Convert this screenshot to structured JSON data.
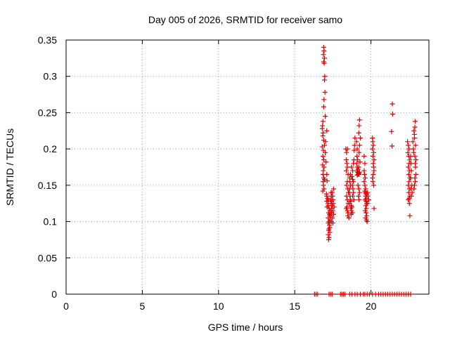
{
  "chart_data": {
    "type": "scatter",
    "title": "Day 005 of 2026, SRMTID for receiver samo",
    "xlabel": "GPS time / hours",
    "ylabel": "SRMTID / TECUs",
    "xlim": [
      0,
      23.8
    ],
    "ylim": [
      0,
      0.35
    ],
    "xticks": [
      0,
      5,
      10,
      15,
      20
    ],
    "xtick_labels": [
      "0",
      "5",
      "10",
      "15",
      "20"
    ],
    "yticks": [
      0,
      0.05,
      0.1,
      0.15,
      0.2,
      0.25,
      0.3,
      0.35
    ],
    "ytick_labels": [
      "0",
      "0.05",
      "0.1",
      "0.15",
      "0.2",
      "0.25",
      "0.3",
      "0.35"
    ],
    "grid": true,
    "marker": "+",
    "marker_color": "#e00000",
    "series": [
      {
        "name": "SRMTID",
        "points": [
          [
            16.9,
            0.34
          ],
          [
            16.92,
            0.335
          ],
          [
            16.88,
            0.33
          ],
          [
            16.95,
            0.325
          ],
          [
            16.9,
            0.32
          ],
          [
            16.93,
            0.318
          ],
          [
            16.97,
            0.3
          ],
          [
            16.95,
            0.295
          ],
          [
            16.98,
            0.278
          ],
          [
            16.92,
            0.268
          ],
          [
            16.9,
            0.258
          ],
          [
            17.0,
            0.245
          ],
          [
            16.85,
            0.238
          ],
          [
            16.82,
            0.232
          ],
          [
            16.8,
            0.228
          ],
          [
            16.86,
            0.222
          ],
          [
            17.1,
            0.225
          ],
          [
            16.84,
            0.218
          ],
          [
            16.9,
            0.212
          ],
          [
            17.02,
            0.21
          ],
          [
            16.95,
            0.205
          ],
          [
            16.8,
            0.203
          ],
          [
            16.88,
            0.198
          ],
          [
            17.0,
            0.195
          ],
          [
            16.85,
            0.19
          ],
          [
            16.9,
            0.185
          ],
          [
            17.05,
            0.182
          ],
          [
            16.83,
            0.178
          ],
          [
            16.92,
            0.175
          ],
          [
            16.87,
            0.17
          ],
          [
            17.1,
            0.165
          ],
          [
            16.85,
            0.165
          ],
          [
            16.9,
            0.16
          ],
          [
            16.95,
            0.158
          ],
          [
            17.12,
            0.156
          ],
          [
            16.86,
            0.155
          ],
          [
            16.88,
            0.15
          ],
          [
            16.92,
            0.145
          ],
          [
            16.84,
            0.142
          ],
          [
            17.08,
            0.138
          ],
          [
            17.1,
            0.135
          ],
          [
            17.15,
            0.132
          ],
          [
            17.2,
            0.13
          ],
          [
            17.1,
            0.128
          ],
          [
            17.18,
            0.125
          ],
          [
            17.2,
            0.122
          ],
          [
            17.12,
            0.12
          ],
          [
            17.25,
            0.118
          ],
          [
            17.3,
            0.115
          ],
          [
            17.22,
            0.112
          ],
          [
            17.28,
            0.11
          ],
          [
            17.3,
            0.108
          ],
          [
            17.2,
            0.105
          ],
          [
            17.32,
            0.102
          ],
          [
            17.25,
            0.1
          ],
          [
            17.2,
            0.098
          ],
          [
            17.27,
            0.095
          ],
          [
            17.3,
            0.092
          ],
          [
            17.25,
            0.09
          ],
          [
            17.22,
            0.088
          ],
          [
            17.3,
            0.085
          ],
          [
            17.2,
            0.082
          ],
          [
            17.25,
            0.078
          ],
          [
            17.22,
            0.075
          ],
          [
            17.38,
            0.14
          ],
          [
            17.4,
            0.135
          ],
          [
            17.35,
            0.13
          ],
          [
            17.42,
            0.128
          ],
          [
            17.38,
            0.125
          ],
          [
            17.45,
            0.122
          ],
          [
            17.4,
            0.118
          ],
          [
            17.38,
            0.115
          ],
          [
            17.42,
            0.112
          ],
          [
            17.35,
            0.108
          ],
          [
            17.45,
            0.105
          ],
          [
            17.4,
            0.1
          ],
          [
            17.5,
            0.098
          ],
          [
            17.45,
            0.14
          ],
          [
            17.48,
            0.135
          ],
          [
            17.5,
            0.13
          ],
          [
            17.55,
            0.145
          ],
          [
            17.52,
            0.125
          ],
          [
            17.58,
            0.12
          ],
          [
            17.5,
            0.115
          ],
          [
            17.55,
            0.11
          ],
          [
            18.35,
            0.2
          ],
          [
            18.4,
            0.195
          ],
          [
            18.45,
            0.2
          ],
          [
            18.38,
            0.185
          ],
          [
            18.42,
            0.18
          ],
          [
            18.45,
            0.175
          ],
          [
            18.38,
            0.17
          ],
          [
            18.5,
            0.165
          ],
          [
            18.45,
            0.155
          ],
          [
            18.4,
            0.15
          ],
          [
            18.48,
            0.145
          ],
          [
            18.52,
            0.14
          ],
          [
            18.4,
            0.135
          ],
          [
            18.45,
            0.13
          ],
          [
            18.5,
            0.125
          ],
          [
            18.42,
            0.12
          ],
          [
            18.38,
            0.118
          ],
          [
            18.45,
            0.115
          ],
          [
            18.5,
            0.112
          ],
          [
            18.48,
            0.108
          ],
          [
            18.55,
            0.105
          ],
          [
            18.6,
            0.16
          ],
          [
            18.62,
            0.155
          ],
          [
            18.65,
            0.15
          ],
          [
            18.6,
            0.145
          ],
          [
            18.58,
            0.14
          ],
          [
            18.62,
            0.135
          ],
          [
            18.65,
            0.13
          ],
          [
            18.68,
            0.128
          ],
          [
            18.6,
            0.125
          ],
          [
            18.7,
            0.122
          ],
          [
            18.75,
            0.12
          ],
          [
            18.68,
            0.118
          ],
          [
            18.72,
            0.115
          ],
          [
            18.78,
            0.112
          ],
          [
            18.7,
            0.11
          ],
          [
            18.65,
            0.165
          ],
          [
            18.72,
            0.175
          ],
          [
            18.8,
            0.17
          ],
          [
            18.75,
            0.162
          ],
          [
            18.8,
            0.158
          ],
          [
            18.85,
            0.155
          ],
          [
            18.78,
            0.15
          ],
          [
            18.82,
            0.145
          ],
          [
            18.85,
            0.14
          ],
          [
            18.8,
            0.135
          ],
          [
            18.88,
            0.13
          ],
          [
            18.9,
            0.198
          ],
          [
            18.92,
            0.205
          ],
          [
            18.95,
            0.215
          ],
          [
            18.85,
            0.18
          ],
          [
            18.88,
            0.185
          ],
          [
            19.05,
            0.21
          ],
          [
            19.1,
            0.2
          ],
          [
            19.08,
            0.19
          ],
          [
            19.12,
            0.185
          ],
          [
            19.05,
            0.18
          ],
          [
            19.1,
            0.175
          ],
          [
            19.15,
            0.172
          ],
          [
            19.08,
            0.17
          ],
          [
            19.12,
            0.168
          ],
          [
            19.18,
            0.167
          ],
          [
            19.2,
            0.166
          ],
          [
            19.15,
            0.165
          ],
          [
            19.22,
            0.165
          ],
          [
            19.1,
            0.164
          ],
          [
            19.25,
            0.168
          ],
          [
            19.2,
            0.175
          ],
          [
            19.28,
            0.182
          ],
          [
            19.22,
            0.195
          ],
          [
            19.25,
            0.205
          ],
          [
            19.2,
            0.222
          ],
          [
            19.22,
            0.232
          ],
          [
            19.25,
            0.24
          ],
          [
            19.3,
            0.215
          ],
          [
            19.15,
            0.15
          ],
          [
            19.2,
            0.145
          ],
          [
            19.25,
            0.14
          ],
          [
            19.18,
            0.135
          ],
          [
            19.22,
            0.13
          ],
          [
            19.55,
            0.19
          ],
          [
            19.6,
            0.18
          ],
          [
            19.55,
            0.17
          ],
          [
            19.58,
            0.165
          ],
          [
            19.62,
            0.16
          ],
          [
            19.55,
            0.155
          ],
          [
            19.6,
            0.15
          ],
          [
            19.65,
            0.145
          ],
          [
            19.6,
            0.142
          ],
          [
            19.62,
            0.14
          ],
          [
            19.68,
            0.138
          ],
          [
            19.65,
            0.135
          ],
          [
            19.7,
            0.132
          ],
          [
            19.62,
            0.13
          ],
          [
            19.68,
            0.128
          ],
          [
            19.72,
            0.125
          ],
          [
            19.65,
            0.122
          ],
          [
            19.7,
            0.118
          ],
          [
            19.62,
            0.115
          ],
          [
            19.68,
            0.112
          ],
          [
            19.72,
            0.108
          ],
          [
            19.65,
            0.105
          ],
          [
            19.7,
            0.102
          ],
          [
            19.75,
            0.1
          ],
          [
            19.72,
            0.138
          ],
          [
            19.78,
            0.14
          ],
          [
            19.8,
            0.135
          ],
          [
            19.85,
            0.13
          ],
          [
            19.78,
            0.125
          ],
          [
            20.1,
            0.215
          ],
          [
            20.12,
            0.21
          ],
          [
            20.15,
            0.205
          ],
          [
            20.1,
            0.2
          ],
          [
            20.18,
            0.195
          ],
          [
            20.12,
            0.19
          ],
          [
            20.2,
            0.185
          ],
          [
            20.15,
            0.18
          ],
          [
            20.18,
            0.175
          ],
          [
            20.2,
            0.17
          ],
          [
            20.15,
            0.165
          ],
          [
            20.1,
            0.16
          ],
          [
            20.12,
            0.155
          ],
          [
            20.18,
            0.15
          ],
          [
            20.2,
            0.118
          ],
          [
            21.4,
            0.262
          ],
          [
            21.42,
            0.248
          ],
          [
            21.35,
            0.224
          ],
          [
            21.38,
            0.204
          ],
          [
            22.4,
            0.21
          ],
          [
            22.45,
            0.205
          ],
          [
            22.5,
            0.2
          ],
          [
            22.42,
            0.195
          ],
          [
            22.48,
            0.19
          ],
          [
            22.55,
            0.185
          ],
          [
            22.5,
            0.18
          ],
          [
            22.45,
            0.175
          ],
          [
            22.52,
            0.17
          ],
          [
            22.48,
            0.165
          ],
          [
            22.55,
            0.16
          ],
          [
            22.5,
            0.155
          ],
          [
            22.45,
            0.15
          ],
          [
            22.52,
            0.145
          ],
          [
            22.48,
            0.14
          ],
          [
            22.55,
            0.135
          ],
          [
            22.5,
            0.132
          ],
          [
            22.45,
            0.13
          ],
          [
            22.52,
            0.125
          ],
          [
            22.55,
            0.108
          ],
          [
            22.6,
            0.19
          ],
          [
            22.62,
            0.18
          ],
          [
            22.65,
            0.17
          ],
          [
            22.6,
            0.16
          ],
          [
            22.68,
            0.15
          ],
          [
            22.62,
            0.145
          ],
          [
            22.7,
            0.14
          ],
          [
            22.65,
            0.135
          ],
          [
            22.75,
            0.21
          ],
          [
            22.78,
            0.2
          ],
          [
            22.8,
            0.195
          ],
          [
            22.85,
            0.215
          ],
          [
            22.82,
            0.225
          ],
          [
            22.88,
            0.23
          ],
          [
            22.9,
            0.238
          ],
          [
            22.85,
            0.22
          ],
          [
            22.92,
            0.205
          ],
          [
            22.88,
            0.19
          ],
          [
            22.95,
            0.185
          ],
          [
            22.9,
            0.18
          ],
          [
            22.92,
            0.175
          ],
          [
            22.95,
            0.165
          ],
          [
            22.88,
            0.16
          ],
          [
            22.9,
            0.155
          ],
          [
            22.85,
            0.15
          ],
          [
            22.82,
            0.145
          ],
          [
            16.3,
            0.0
          ],
          [
            16.4,
            0.0
          ],
          [
            16.5,
            0.0
          ],
          [
            17.25,
            0.0
          ],
          [
            17.35,
            0.0
          ],
          [
            17.45,
            0.0
          ],
          [
            18.0,
            0.0
          ],
          [
            18.1,
            0.0
          ],
          [
            18.2,
            0.0
          ],
          [
            18.3,
            0.0
          ],
          [
            18.6,
            0.0
          ],
          [
            18.75,
            0.0
          ],
          [
            18.95,
            0.0
          ],
          [
            19.1,
            0.0
          ],
          [
            19.3,
            0.0
          ],
          [
            19.5,
            0.0
          ],
          [
            19.6,
            0.0
          ],
          [
            19.75,
            0.0
          ],
          [
            19.9,
            0.0
          ],
          [
            20.1,
            0.0
          ],
          [
            20.3,
            0.0
          ],
          [
            20.5,
            0.0
          ],
          [
            20.65,
            0.0
          ],
          [
            20.8,
            0.0
          ],
          [
            20.95,
            0.0
          ],
          [
            21.1,
            0.0
          ],
          [
            21.25,
            0.0
          ],
          [
            21.4,
            0.0
          ],
          [
            21.55,
            0.0
          ],
          [
            21.7,
            0.0
          ],
          [
            21.85,
            0.0
          ],
          [
            22.0,
            0.0
          ],
          [
            22.15,
            0.0
          ],
          [
            22.3,
            0.0
          ],
          [
            22.45,
            0.0
          ],
          [
            22.6,
            0.0
          ]
        ]
      }
    ]
  }
}
